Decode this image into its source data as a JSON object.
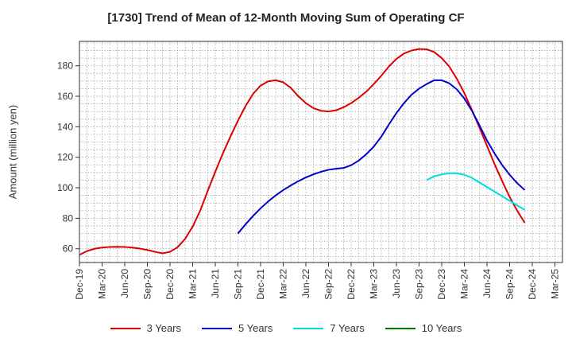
{
  "chart_data": {
    "type": "line",
    "title": "[1730]  Trend of Mean of 12-Month Moving Sum of Operating CF",
    "xlabel": "",
    "ylabel": "Amount (million yen)",
    "ylim": [
      51,
      196
    ],
    "yticks": [
      60,
      80,
      100,
      120,
      140,
      160,
      180
    ],
    "x_tick_labels": [
      "Dec-19",
      "Mar-20",
      "Jun-20",
      "Sep-20",
      "Dec-20",
      "Mar-21",
      "Jun-21",
      "Sep-21",
      "Dec-21",
      "Mar-22",
      "Jun-22",
      "Sep-22",
      "Dec-22",
      "Mar-23",
      "Jun-23",
      "Sep-23",
      "Dec-23",
      "Mar-24",
      "Jun-24",
      "Sep-24",
      "Dec-24",
      "Mar-25"
    ],
    "x_start": "Dec-19",
    "x_months": 64,
    "grid": true,
    "legend_position": "bottom",
    "series": [
      {
        "name": "3 Years",
        "color": "#dd0000",
        "start_index": 0,
        "values": [
          56,
          58.5,
          60,
          60.8,
          61.2,
          61.3,
          61.2,
          60.8,
          60.1,
          59.2,
          58,
          57,
          58,
          61,
          66.5,
          74.5,
          85,
          98,
          110.5,
          122.5,
          133.5,
          144,
          153.5,
          161.5,
          167,
          169.8,
          170.5,
          169.2,
          165.5,
          160,
          155.5,
          152.2,
          150.5,
          150,
          150.8,
          152.8,
          155.5,
          159,
          163,
          168,
          173.5,
          179.5,
          184.5,
          188,
          190,
          191,
          190.8,
          189,
          185,
          179.5,
          171.5,
          162,
          151,
          139.5,
          127.5,
          115.5,
          104.5,
          94,
          85,
          77
        ]
      },
      {
        "name": "5 Years",
        "color": "#0000cc",
        "start_index": 21,
        "values": [
          70,
          76,
          81.5,
          86.5,
          91,
          95,
          98.5,
          101.5,
          104.3,
          106.8,
          108.8,
          110.5,
          111.8,
          112.5,
          113,
          114.8,
          117.8,
          122,
          127,
          133.5,
          141.5,
          149,
          155.5,
          161,
          165,
          168,
          170.5,
          170.5,
          168.5,
          164.5,
          158.5,
          150.5,
          141,
          131,
          122.5,
          115,
          108.5,
          103,
          98.5
        ]
      },
      {
        "name": "7 Years",
        "color": "#00dddd",
        "start_index": 46,
        "values": [
          105,
          107.5,
          108.8,
          109.5,
          109.5,
          108.5,
          106.5,
          103.5,
          100.5,
          97.5,
          94.5,
          91.5,
          88.5,
          85.5
        ]
      },
      {
        "name": "10 Years",
        "color": "#007700",
        "start_index": 0,
        "values": []
      }
    ]
  }
}
